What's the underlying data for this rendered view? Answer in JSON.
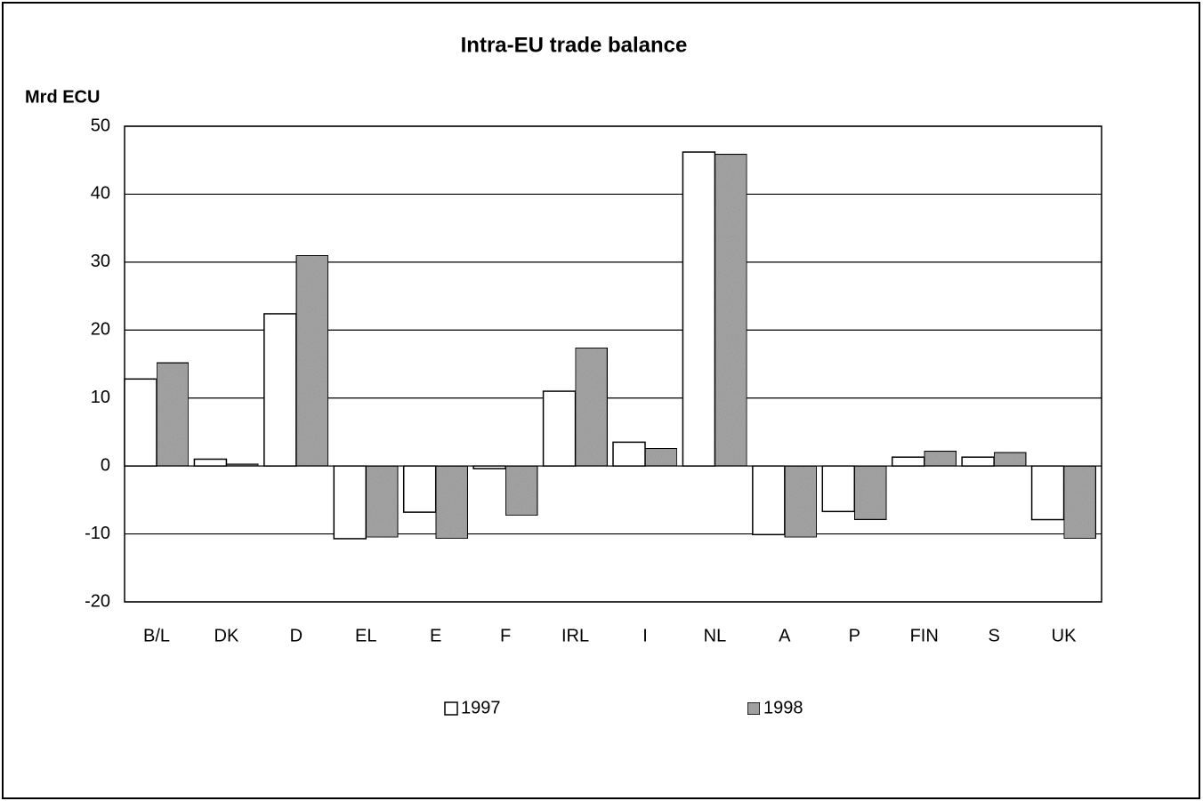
{
  "chart_data": {
    "type": "bar",
    "title": "Intra-EU trade balance",
    "y_label": "Mrd ECU",
    "categories": [
      "B/L",
      "DK",
      "D",
      "EL",
      "E",
      "F",
      "IRL",
      "I",
      "NL",
      "A",
      "P",
      "FIN",
      "S",
      "UK"
    ],
    "series": [
      {
        "name": "1997",
        "color": "#ffffff",
        "values": [
          12.8,
          1.0,
          22.4,
          -10.7,
          -6.8,
          -0.4,
          11.0,
          3.5,
          46.2,
          -10.1,
          -6.7,
          1.3,
          1.3,
          -7.9
        ]
      },
      {
        "name": "1998",
        "color": "#a8a8a8",
        "values": [
          15.2,
          0.3,
          31.0,
          -10.5,
          -10.7,
          -7.3,
          17.4,
          2.6,
          45.9,
          -10.5,
          -7.9,
          2.2,
          2.0,
          -10.7
        ]
      }
    ],
    "ylim": [
      -20,
      50
    ],
    "yticks": [
      -20,
      -10,
      0,
      10,
      20,
      30,
      40,
      50
    ],
    "grid": true
  }
}
